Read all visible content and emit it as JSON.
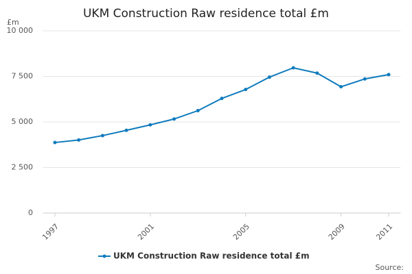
{
  "chart_data": {
    "type": "line",
    "title": "UKM Construction Raw residence total £m",
    "y_label": "£m",
    "source": "Source:",
    "x": [
      1997,
      1998,
      1999,
      2000,
      2001,
      2002,
      2003,
      2004,
      2005,
      2006,
      2007,
      2008,
      2009,
      2010,
      2011
    ],
    "series": [
      {
        "name": "UKM Construction Raw residence total £m",
        "color": "#0e7bbd",
        "values": [
          3870,
          4010,
          4250,
          4540,
          4840,
          5160,
          5620,
          6290,
          6780,
          7460,
          7970,
          7680,
          6930,
          7360,
          7600
        ]
      }
    ],
    "xlim": [
      1996.5,
      2011.5
    ],
    "xticks": [
      1997,
      2001,
      2005,
      2009,
      2011
    ],
    "ylim": [
      0,
      10000
    ],
    "yticks": [
      0,
      {
        "value": 2500,
        "label": "2 500"
      },
      {
        "value": 5000,
        "label": "5 000"
      },
      {
        "value": 7500,
        "label": "7 500"
      },
      {
        "value": 10000,
        "label": "10 000"
      }
    ],
    "grid": true,
    "legend": "bottom"
  }
}
